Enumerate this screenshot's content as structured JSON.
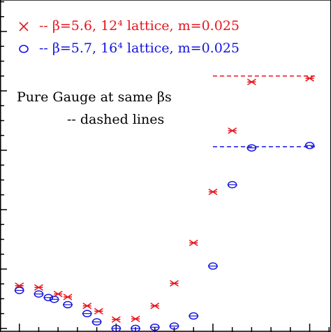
{
  "chart_data": {
    "type": "scatter",
    "series": [
      {
        "name": "-- β=5.6, 12⁴ lattice, m=0.025",
        "color": "#e8141c",
        "marker": "x",
        "x": [
          1,
          2,
          3,
          3.5,
          4.5,
          5.1,
          6,
          7,
          8,
          9,
          10,
          11,
          12,
          13,
          16
        ],
        "values": [
          0.72,
          0.69,
          0.58,
          0.53,
          0.38,
          0.29,
          0.15,
          0.16,
          0.38,
          0.76,
          1.44,
          2.3,
          3.33,
          4.15,
          4.21
        ]
      },
      {
        "name": "-- β=5.7, 16⁴ lattice, m=0.025",
        "color": "#1414e0",
        "marker": "o",
        "x": [
          1,
          2,
          2.5,
          2.8,
          3.5,
          4.5,
          5,
          6,
          7,
          8,
          9,
          10,
          11,
          12,
          13,
          16
        ],
        "values": [
          0.64,
          0.58,
          0.52,
          0.49,
          0.4,
          0.25,
          0.11,
          0.0,
          0.0,
          0.02,
          0.04,
          0.21,
          1.05,
          2.42,
          3.04,
          3.08
        ]
      }
    ],
    "reference_lines": [
      {
        "color": "#e8141c",
        "x": [
          11,
          16.4
        ],
        "value": 4.25
      },
      {
        "color": "#1414e0",
        "x": [
          11,
          16.4
        ],
        "value": 3.06
      }
    ],
    "annotations": [
      "Pure Gauge at same βs",
      "-- dashed lines"
    ],
    "xlim": [
      0,
      17.1
    ],
    "ylim": [
      -0.06,
      5.53
    ],
    "xticks": [
      0,
      1,
      2,
      3,
      4,
      5,
      6,
      7,
      8,
      9,
      10,
      11,
      12,
      13,
      14,
      15,
      16,
      17
    ],
    "yticks": [
      0,
      0.25,
      0.5,
      0.75,
      1,
      1.25,
      1.5,
      1.75,
      2,
      2.25,
      2.5,
      2.75,
      3,
      3.25,
      3.5,
      3.75,
      4,
      4.25,
      4.5,
      4.75,
      5,
      5.25,
      5.5
    ]
  }
}
